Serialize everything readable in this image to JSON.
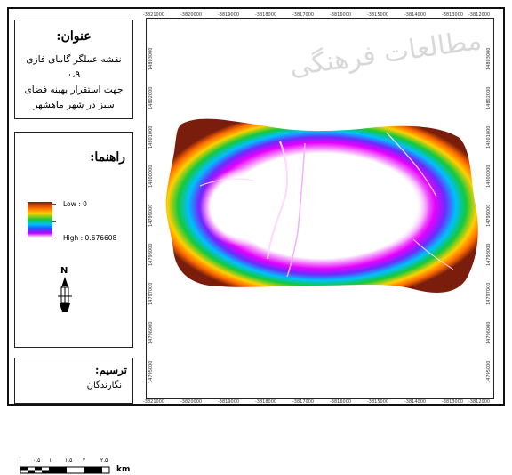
{
  "title_panel": {
    "heading": "عنوان:",
    "lines": [
      "نقشه عملگر گامای فازی ۰،۹",
      "جهت استقرار بهینه فضای",
      "سبز در شهر ماهشهر"
    ]
  },
  "legend_panel": {
    "heading": "راهنما:",
    "low_label": "Low : 0",
    "high_label": "High : 0.676608",
    "north_letter": "N",
    "scalebar_units": "km",
    "scalebar_ticks": [
      "۰",
      "۰.۵",
      "۱",
      "۱.۵",
      "۲",
      "۲.۵"
    ]
  },
  "credit_panel": {
    "heading": "ترسیم:",
    "body": "نگارندگان"
  },
  "map": {
    "x_ticks": [
      "-3821000",
      "-3820000",
      "-3819000",
      "-3818000",
      "-3817000",
      "-3816000",
      "-3815000",
      "-3814000",
      "-3813000",
      "-3812000"
    ],
    "y_ticks": [
      "14803000",
      "14802000",
      "14801000",
      "14800000",
      "14799000",
      "14798000",
      "14797000",
      "14796000",
      "14795000"
    ],
    "watermark": "مطالعات فرهنگی"
  },
  "colors": {
    "ramp_low": "#7a1d0c",
    "ramp_mid": "#15c93a",
    "ramp_high": "#ffffff"
  }
}
